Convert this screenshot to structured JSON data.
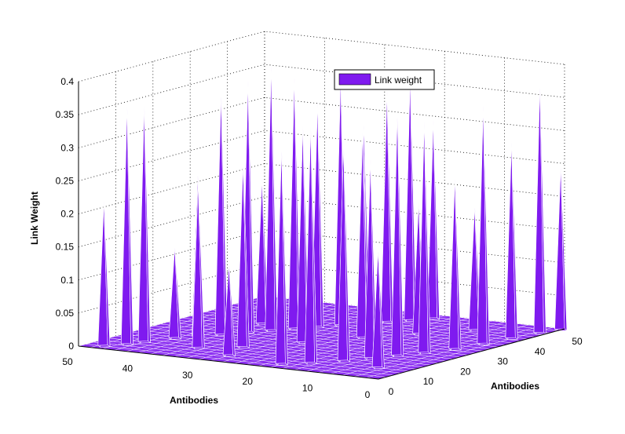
{
  "chart_data": {
    "type": "surface",
    "series": [
      {
        "name": "Link weight",
        "color": "#7f1aef"
      }
    ],
    "xlabel": "Antibodies",
    "ylabel": "Antibodies",
    "zlabel": "Link Weight",
    "xlim": [
      0,
      50
    ],
    "ylim": [
      0,
      50
    ],
    "zlim": [
      0,
      0.4
    ],
    "x_ticks": [
      "0",
      "10",
      "20",
      "30",
      "40",
      "50"
    ],
    "y_ticks": [
      "0",
      "10",
      "20",
      "30",
      "40",
      "50"
    ],
    "z_ticks": [
      "0",
      "0.05",
      "0.1",
      "0.15",
      "0.2",
      "0.25",
      "0.3",
      "0.35",
      "0.4"
    ],
    "grid": true,
    "legend_position": "top-right",
    "peaks": [
      {
        "x": 47,
        "y": 2,
        "z": 0.22
      },
      {
        "x": 45,
        "y": 5,
        "z": 0.36
      },
      {
        "x": 44,
        "y": 8,
        "z": 0.36
      },
      {
        "x": 42,
        "y": 13,
        "z": 0.14
      },
      {
        "x": 40,
        "y": 16,
        "z": 0.25
      },
      {
        "x": 38,
        "y": 19,
        "z": 0.37
      },
      {
        "x": 36,
        "y": 23,
        "z": 0.38
      },
      {
        "x": 34,
        "y": 26,
        "z": 0.4
      },
      {
        "x": 32,
        "y": 29,
        "z": 0.38
      },
      {
        "x": 30,
        "y": 32,
        "z": 0.34
      },
      {
        "x": 28,
        "y": 35,
        "z": 0.38
      },
      {
        "x": 26,
        "y": 38,
        "z": 0.3
      },
      {
        "x": 24,
        "y": 41,
        "z": 0.35
      },
      {
        "x": 22,
        "y": 44,
        "z": 0.37
      },
      {
        "x": 20,
        "y": 47,
        "z": 0.3
      },
      {
        "x": 18,
        "y": 3,
        "z": 0.33
      },
      {
        "x": 15,
        "y": 6,
        "z": 0.36
      },
      {
        "x": 12,
        "y": 10,
        "z": 0.33
      },
      {
        "x": 10,
        "y": 14,
        "z": 0.3
      },
      {
        "x": 8,
        "y": 18,
        "z": 0.37
      },
      {
        "x": 6,
        "y": 22,
        "z": 0.35
      },
      {
        "x": 4,
        "y": 27,
        "z": 0.26
      },
      {
        "x": 3,
        "y": 33,
        "z": 0.36
      },
      {
        "x": 2,
        "y": 39,
        "z": 0.3
      },
      {
        "x": 1,
        "y": 45,
        "z": 0.38
      },
      {
        "x": 0,
        "y": 49,
        "z": 0.25
      },
      {
        "x": 30,
        "y": 12,
        "z": 0.28
      },
      {
        "x": 25,
        "y": 20,
        "z": 0.33
      },
      {
        "x": 35,
        "y": 8,
        "z": 0.25
      },
      {
        "x": 20,
        "y": 28,
        "z": 0.31
      },
      {
        "x": 15,
        "y": 35,
        "z": 0.2
      },
      {
        "x": 10,
        "y": 42,
        "z": 0.19
      },
      {
        "x": 38,
        "y": 30,
        "z": 0.22
      },
      {
        "x": 42,
        "y": 26,
        "z": 0.12
      },
      {
        "x": 28,
        "y": 5,
        "z": 0.14
      },
      {
        "x": 5,
        "y": 8,
        "z": 0.18
      }
    ]
  }
}
